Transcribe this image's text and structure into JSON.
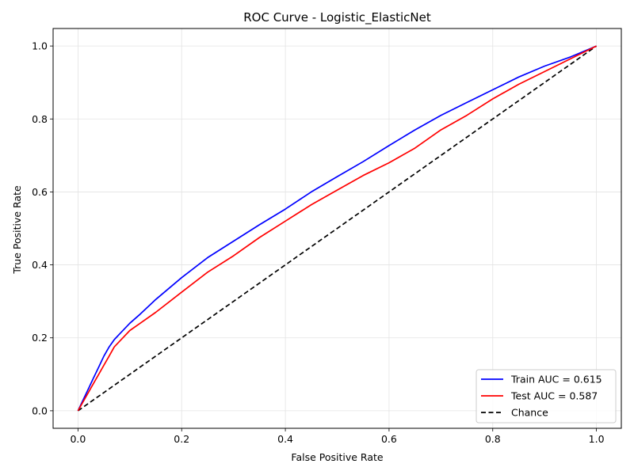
{
  "chart_data": {
    "type": "line",
    "title": "ROC Curve - Logistic_ElasticNet",
    "xlabel": "False Positive Rate",
    "ylabel": "True Positive Rate",
    "xlim": [
      -0.048,
      1.048
    ],
    "ylim": [
      -0.048,
      1.048
    ],
    "xticks": [
      "0.0",
      "0.2",
      "0.4",
      "0.6",
      "0.8",
      "1.0"
    ],
    "yticks": [
      "0.0",
      "0.2",
      "0.4",
      "0.6",
      "0.8",
      "1.0"
    ],
    "grid": true,
    "legend_position": "lower right",
    "series": [
      {
        "name": "Train AUC = 0.615",
        "color": "#0000ff",
        "linestyle": "solid",
        "x": [
          0,
          0.01,
          0.02,
          0.03,
          0.04,
          0.05,
          0.06,
          0.07,
          0.08,
          0.1,
          0.12,
          0.15,
          0.2,
          0.25,
          0.3,
          0.35,
          0.4,
          0.45,
          0.5,
          0.55,
          0.6,
          0.65,
          0.7,
          0.75,
          0.8,
          0.85,
          0.9,
          0.95,
          1.0
        ],
        "y": [
          0,
          0.03,
          0.06,
          0.09,
          0.12,
          0.15,
          0.175,
          0.195,
          0.21,
          0.24,
          0.265,
          0.305,
          0.365,
          0.42,
          0.465,
          0.51,
          0.553,
          0.6,
          0.642,
          0.683,
          0.727,
          0.77,
          0.81,
          0.845,
          0.88,
          0.915,
          0.945,
          0.97,
          1.0
        ]
      },
      {
        "name": "Test AUC = 0.587",
        "color": "#ff0000",
        "linestyle": "solid",
        "x": [
          0,
          0.01,
          0.02,
          0.03,
          0.04,
          0.05,
          0.06,
          0.07,
          0.08,
          0.1,
          0.12,
          0.15,
          0.2,
          0.25,
          0.3,
          0.35,
          0.4,
          0.45,
          0.5,
          0.55,
          0.6,
          0.65,
          0.7,
          0.75,
          0.8,
          0.85,
          0.9,
          0.95,
          1.0
        ],
        "y": [
          0,
          0.025,
          0.05,
          0.075,
          0.1,
          0.125,
          0.15,
          0.175,
          0.19,
          0.22,
          0.24,
          0.27,
          0.325,
          0.38,
          0.425,
          0.475,
          0.52,
          0.565,
          0.605,
          0.645,
          0.68,
          0.72,
          0.77,
          0.81,
          0.855,
          0.895,
          0.93,
          0.965,
          1.0
        ]
      },
      {
        "name": "Chance",
        "color": "#000000",
        "linestyle": "dashed",
        "x": [
          0,
          1
        ],
        "y": [
          0,
          1
        ]
      }
    ]
  }
}
